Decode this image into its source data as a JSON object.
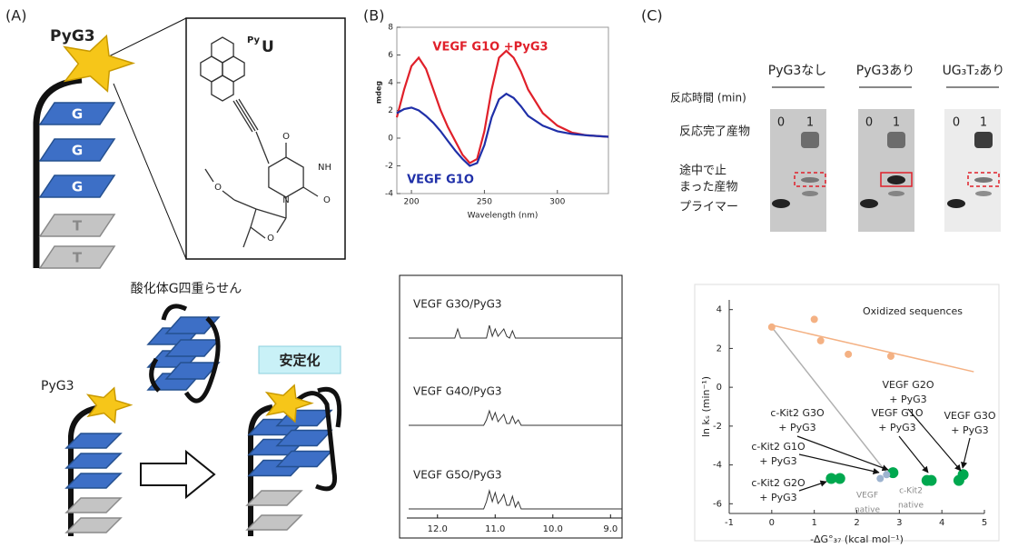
{
  "panels": {
    "a": "(A)",
    "b": "(B)",
    "c": "(C)"
  },
  "panel_a": {
    "title": "PyG3",
    "tiles": [
      "G",
      "G",
      "G",
      "T",
      "T"
    ],
    "structure_label": {
      "prefix": "Py",
      "base": "U"
    },
    "atoms": [
      "O",
      "NH",
      "O",
      "N",
      "O",
      "O"
    ],
    "caption": "酸化体G四重らせん",
    "probe": "PyG3",
    "stabilized": "安定化"
  },
  "panel_c_gel": {
    "conditions": [
      "PyG3なし",
      "PyG3あり",
      "UG₃T₂あり"
    ],
    "time_label": "反応時間 (min)",
    "lanes": [
      [
        0,
        1
      ],
      [
        0,
        1
      ],
      [
        0,
        1
      ]
    ],
    "bands": {
      "complete": "反応完了産物",
      "stalled": [
        "途中で止",
        "まった産物"
      ],
      "primer": "プライマー"
    }
  },
  "chart_data": [
    {
      "type": "line",
      "xlabel": "Wavelength (nm)",
      "ylabel": "mdeg",
      "x": [
        190,
        195,
        200,
        205,
        210,
        215,
        220,
        225,
        230,
        235,
        240,
        245,
        250,
        255,
        260,
        265,
        270,
        275,
        280,
        290,
        300,
        310,
        320,
        335
      ],
      "xlim": [
        190,
        335
      ],
      "xticks": [
        200,
        250,
        300
      ],
      "ylim": [
        -4,
        8
      ],
      "yticks": [
        -4,
        -2,
        0,
        2,
        4,
        6,
        8
      ],
      "series": [
        {
          "name": "VEGF G1O +PyG3",
          "color": "#e0202a",
          "values": [
            1.5,
            3.5,
            5.2,
            5.8,
            5.0,
            3.5,
            2.0,
            0.8,
            -0.2,
            -1.2,
            -1.8,
            -1.5,
            0.5,
            3.5,
            5.8,
            6.3,
            5.8,
            4.8,
            3.5,
            1.8,
            0.9,
            0.4,
            0.2,
            0.1
          ]
        },
        {
          "name": "VEGF G1O",
          "color": "#1f2fa8",
          "values": [
            1.8,
            2.1,
            2.2,
            2.0,
            1.6,
            1.1,
            0.5,
            -0.2,
            -0.9,
            -1.5,
            -2.0,
            -1.8,
            -0.5,
            1.5,
            2.8,
            3.2,
            2.9,
            2.3,
            1.6,
            0.9,
            0.5,
            0.3,
            0.2,
            0.1
          ]
        }
      ]
    },
    {
      "type": "stacked-line",
      "x": [
        12.5,
        11.7,
        11.65,
        11.6,
        11.2,
        11.15,
        11.1,
        11.05,
        11.0,
        10.95,
        10.9,
        10.85,
        10.8,
        10.75,
        10.7,
        10.65,
        10.6,
        10.55,
        10.5,
        10.0,
        8.8
      ],
      "xlim": [
        12.5,
        8.8
      ],
      "xticks": [
        {
          "value": 12,
          "label": "12.0"
        },
        {
          "value": 11,
          "label": "11.0"
        },
        {
          "value": 10,
          "label": "10.0"
        },
        {
          "value": 9,
          "label": "9.0"
        }
      ],
      "series": [
        {
          "name": "VEGF G3O/PyG3",
          "color": "#333333",
          "values": [
            0,
            0,
            0.5,
            0,
            0,
            0,
            0.7,
            0.1,
            0.5,
            0.1,
            0.3,
            0.5,
            0.1,
            0,
            0.4,
            0,
            0,
            0,
            0,
            0,
            0
          ]
        },
        {
          "name": "VEGF G4O/PyG3",
          "color": "#333333",
          "values": [
            0,
            0,
            0,
            0,
            0,
            0.3,
            0.8,
            0.3,
            0.7,
            0.2,
            0.4,
            0.6,
            0.1,
            0.1,
            0.5,
            0.1,
            0.3,
            0,
            0,
            0,
            0
          ]
        },
        {
          "name": "VEGF G5O/PyG3",
          "color": "#333333",
          "values": [
            0,
            0,
            0,
            0,
            0,
            0.4,
            1.0,
            0.4,
            0.9,
            0.3,
            0.5,
            0.8,
            0.2,
            0.2,
            0.7,
            0.1,
            0.4,
            0,
            0,
            0,
            0
          ]
        }
      ]
    },
    {
      "type": "scatter",
      "xlabel": "-ΔG°₃₇ (kcal mol⁻¹)",
      "ylabel": "ln kₛ (min⁻¹)",
      "xlim": [
        -1,
        5
      ],
      "xticks": [
        -1,
        0,
        1,
        2,
        3,
        4,
        5
      ],
      "ylim": [
        -6.5,
        4.5
      ],
      "yticks": [
        -6,
        -4,
        -2,
        0,
        2,
        4
      ],
      "series": [
        {
          "color": "#f4b183",
          "x": [
            0,
            1,
            1.15,
            1.8,
            2.8
          ],
          "values": [
            3.1,
            3.5,
            2.4,
            1.7,
            1.6
          ]
        },
        {
          "color": "#00a84f",
          "x": [
            1.4,
            1.6,
            2.85,
            3.65,
            3.75,
            4.4,
            4.5
          ],
          "values": [
            -4.7,
            -4.7,
            -4.4,
            -4.8,
            -4.8,
            -4.8,
            -4.5
          ]
        },
        {
          "color": "#9db3cf",
          "x": [
            2.55,
            2.7
          ],
          "values": [
            -4.7,
            -4.5
          ]
        }
      ],
      "trend_lines": [
        {
          "color": "#f4b183",
          "x": [
            0,
            4.75
          ],
          "values": [
            3.2,
            0.8
          ]
        },
        {
          "color": "#b0b0b0",
          "x": [
            0,
            2.7
          ],
          "values": [
            3.1,
            -4.4
          ]
        }
      ],
      "annotations": [
        {
          "lines": [
            "Oxidized sequences"
          ],
          "color": "#222222"
        },
        {
          "lines": [
            "VEGF G2O",
            "+ PyG3"
          ],
          "color": "#222222"
        },
        {
          "lines": [
            "VEGF G1O",
            "+ PyG3"
          ],
          "color": "#222222"
        },
        {
          "lines": [
            "VEGF G3O",
            "+ PyG3"
          ],
          "color": "#222222"
        },
        {
          "lines": [
            "c-Kit2 G3O",
            "+ PyG3"
          ],
          "color": "#222222"
        },
        {
          "lines": [
            "c-Kit2 G1O",
            "+ PyG3"
          ],
          "color": "#222222"
        },
        {
          "lines": [
            "c-Kit2 G2O",
            "+ PyG3"
          ],
          "color": "#222222"
        },
        {
          "lines": [
            "VEGF",
            "native"
          ],
          "color": "#8a8a8a"
        },
        {
          "lines": [
            "c-Kit2",
            "native"
          ],
          "color": "#8a8a8a"
        }
      ]
    }
  ]
}
